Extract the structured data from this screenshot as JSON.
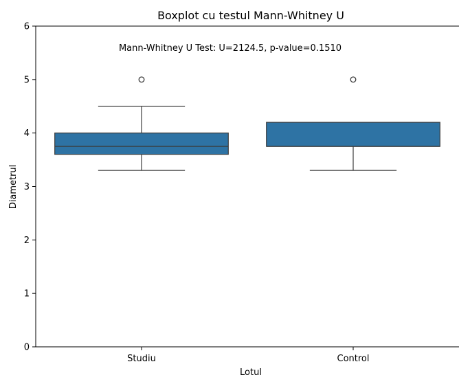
{
  "chart_data": {
    "type": "box",
    "title": "Boxplot cu testul Mann-Whitney U",
    "xlabel": "Lotul",
    "ylabel": "Diametrul",
    "ylim": [
      0,
      6
    ],
    "yticks": [
      "0",
      "1",
      "2",
      "3",
      "4",
      "5",
      "6"
    ],
    "categories": [
      "Studiu",
      "Control"
    ],
    "annotation": "Mann-Whitney U Test: U=2124.5, p-value=0.1510",
    "box_color": "#2e73a4",
    "line_color": "#3c3c3c",
    "grid": false,
    "boxes": [
      {
        "category": "Studiu",
        "whisker_low": 3.3,
        "q1": 3.6,
        "median": 3.75,
        "q3": 4.0,
        "whisker_high": 4.5,
        "outliers": [
          5.0
        ]
      },
      {
        "category": "Control",
        "whisker_low": 3.3,
        "q1": 3.75,
        "median": 3.75,
        "q3": 4.2,
        "whisker_high": 4.2,
        "outliers": [
          5.0
        ]
      }
    ]
  }
}
